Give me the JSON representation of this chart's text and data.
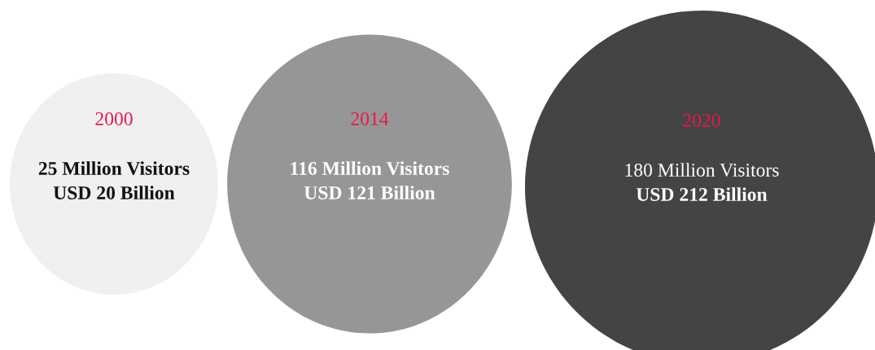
{
  "chart_data": {
    "type": "other",
    "categories": [
      "2000",
      "2014",
      "2020"
    ],
    "series": [
      {
        "colors": [
          "#f0f0f0",
          "#969696",
          "#444444"
        ],
        "values": [
          25,
          116,
          180
        ],
        "value_labels": [
          "25 Million Visitors",
          "116 Million Visitors",
          "180 Million Visitors"
        ]
      },
      {
        "values": [
          20,
          121,
          212
        ],
        "value_labels": [
          "USD 20 Billion",
          "USD 121 Billion",
          "USD 212 Billion"
        ]
      }
    ]
  }
}
